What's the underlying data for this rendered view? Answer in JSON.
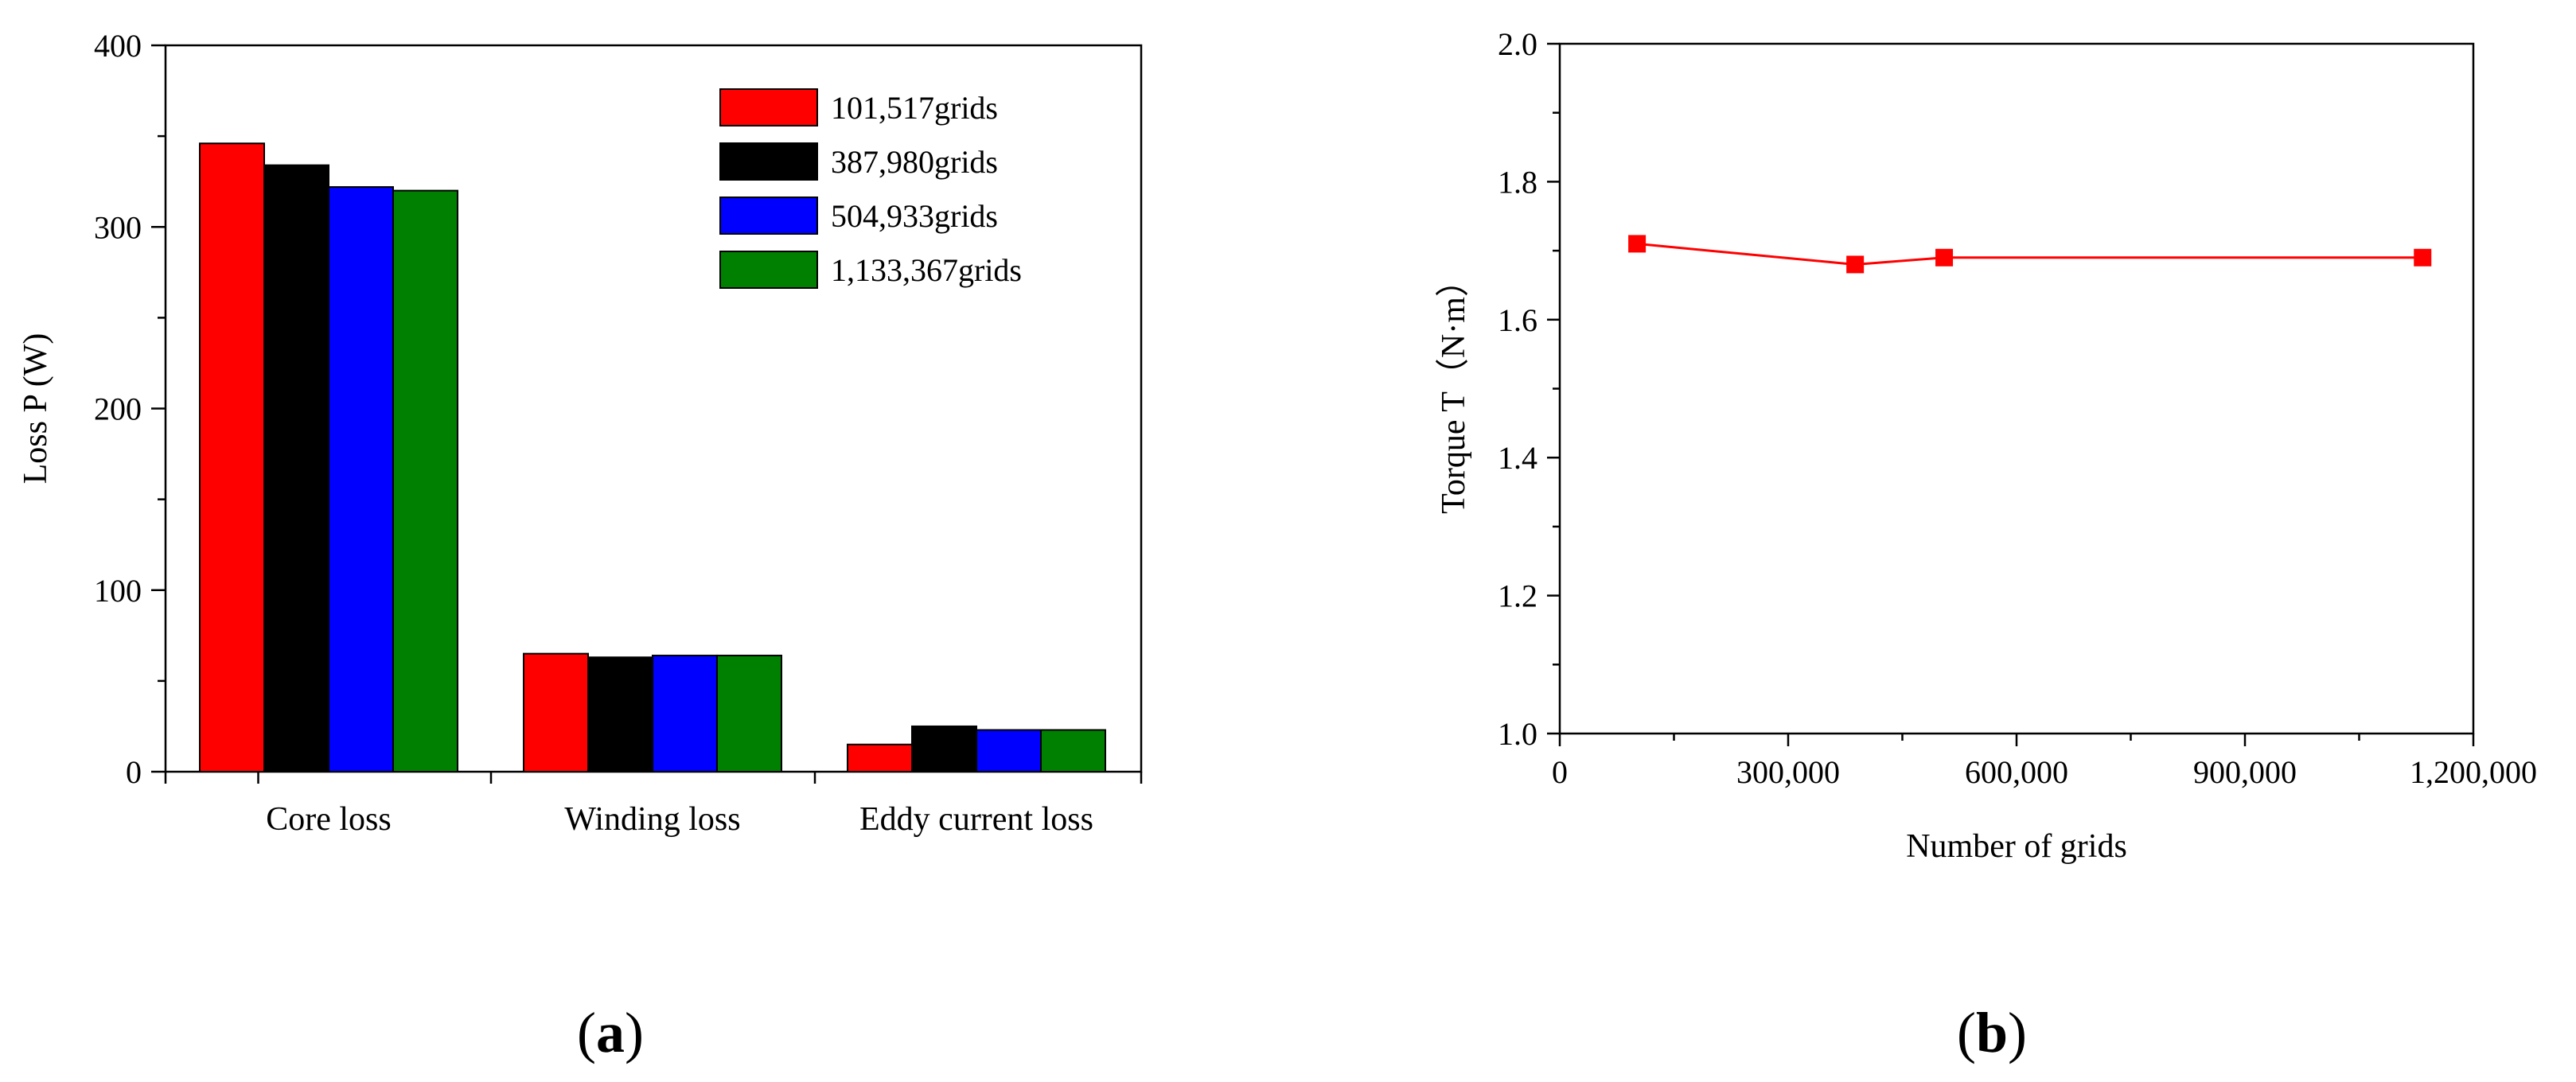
{
  "chart_data": [
    {
      "panel": "a",
      "type": "bar",
      "title": "",
      "categories": [
        "Core loss",
        "Winding loss",
        "Eddy current loss"
      ],
      "series": [
        {
          "name": "101,517grids",
          "color": "#ff0000",
          "values": [
            346,
            65,
            15
          ]
        },
        {
          "name": "387,980grids",
          "color": "#000000",
          "values": [
            334,
            63,
            25
          ]
        },
        {
          "name": "504,933grids",
          "color": "#0000ff",
          "values": [
            322,
            64,
            23
          ]
        },
        {
          "name": "1,133,367grids",
          "color": "#008000",
          "values": [
            320,
            64,
            23
          ]
        }
      ],
      "xlabel": "",
      "ylabel": "Loss P (W)",
      "ylim": [
        0,
        400
      ],
      "yticks": [
        0,
        100,
        200,
        300,
        400
      ],
      "ytick_labels": [
        "0",
        "100",
        "200",
        "300",
        "400"
      ],
      "legend": "top-right",
      "grid": false
    },
    {
      "panel": "b",
      "type": "line",
      "title": "",
      "series": [
        {
          "name": "Torque",
          "color": "#ff0000",
          "marker": "square",
          "x": [
            101517,
            387980,
            504933,
            1133367
          ],
          "y": [
            1.71,
            1.68,
            1.69,
            1.69
          ]
        }
      ],
      "xlabel": "Number of grids",
      "ylabel": "Torque T（N·m）",
      "xlim": [
        0,
        1200000
      ],
      "ylim": [
        1.0,
        2.0
      ],
      "xticks": [
        0,
        300000,
        600000,
        900000,
        1200000
      ],
      "xtick_labels": [
        "0",
        "300,000",
        "600,000",
        "900,000",
        "1,200,000"
      ],
      "yticks": [
        1.0,
        1.2,
        1.4,
        1.6,
        1.8,
        2.0
      ],
      "ytick_labels": [
        "1.0",
        "1.2",
        "1.4",
        "1.6",
        "1.8",
        "2.0"
      ],
      "legend": "none",
      "grid": false
    }
  ],
  "captions": {
    "a": "a",
    "b": "b"
  }
}
